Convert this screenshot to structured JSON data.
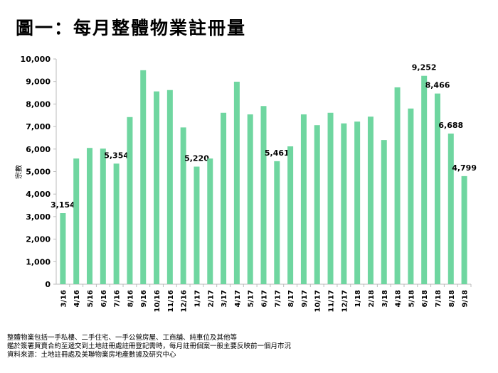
{
  "chart_data": {
    "type": "bar",
    "title": "圖一：每月整體物業註冊量",
    "ylabel": "宗數",
    "xlabel": "",
    "ylim": [
      0,
      10000
    ],
    "yticks": [
      "0",
      "1,000",
      "2,000",
      "3,000",
      "4,000",
      "5,000",
      "6,000",
      "7,000",
      "8,000",
      "9,000",
      "10,000"
    ],
    "categories": [
      "3/16",
      "4/16",
      "5/16",
      "6/16",
      "7/16",
      "8/16",
      "9/16",
      "10/16",
      "11/16",
      "12/16",
      "1/17",
      "2/17",
      "3/17",
      "4/17",
      "5/17",
      "6/17",
      "7/17",
      "8/17",
      "9/17",
      "10/17",
      "11/17",
      "12/17",
      "1/18",
      "2/18",
      "3/18",
      "4/18",
      "5/18",
      "6/18",
      "7/18",
      "8/18",
      "9/18"
    ],
    "values": [
      3154,
      5580,
      6050,
      6020,
      5354,
      7420,
      9500,
      8560,
      8620,
      6960,
      5220,
      5580,
      7610,
      8990,
      7540,
      7910,
      5461,
      6120,
      7540,
      7060,
      7610,
      7140,
      7220,
      7440,
      6400,
      8740,
      7800,
      9252,
      8466,
      6688,
      4799
    ],
    "data_labels": {
      "0": "3,154",
      "4": "5,354",
      "10": "5,220",
      "16": "5,461",
      "27": "9,252",
      "28": "8,466",
      "29": "6,688",
      "30": "4,799"
    },
    "bar_color": "#6fd6a0",
    "grid": false
  },
  "notes": [
    "整體物業包括一手私樓、二手住宅、一手公營房屋、工商舖、純車位及其他等",
    "鑑於簽署買賣合約至遞交到土地註冊處註冊登記需時，每月註冊個案一般主要反映前一個月市況",
    "資料來源：土地註冊處及美聯物業房地產數據及研究中心"
  ]
}
